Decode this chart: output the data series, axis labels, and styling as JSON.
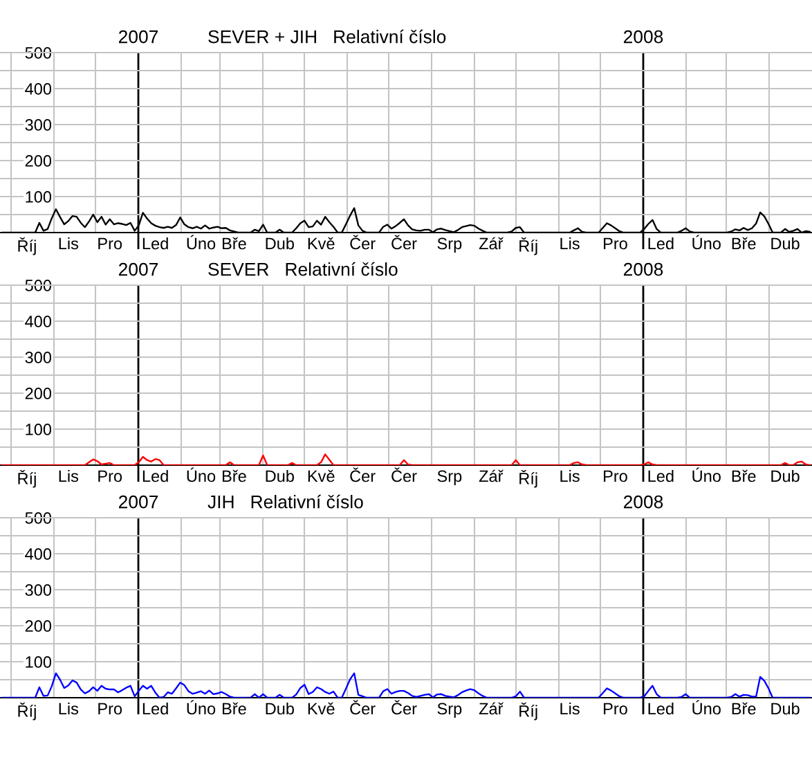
{
  "chart_data": [
    {
      "type": "line",
      "title": "SEVER + JIH   Relativní číslo",
      "categories": [
        null,
        null,
        null,
        null,
        null,
        null,
        "Říj",
        null,
        null,
        null,
        null,
        null,
        null,
        null,
        null,
        null,
        "Lis",
        null,
        null,
        null,
        null,
        null,
        null,
        null,
        null,
        null,
        "Pro",
        null,
        null,
        null,
        null,
        null,
        null,
        null,
        null,
        null,
        null,
        "Led",
        null,
        null,
        null,
        null,
        null,
        null,
        null,
        null,
        null,
        null,
        "Úno",
        null,
        null,
        null,
        null,
        null,
        null,
        null,
        "Bře",
        null,
        null,
        null,
        null,
        null,
        null,
        null,
        null,
        null,
        null,
        "Dub",
        null,
        null,
        null,
        null,
        null,
        null,
        null,
        null,
        null,
        "Kvě",
        null,
        null,
        null,
        null,
        null,
        null,
        null,
        null,
        null,
        "Čer",
        null,
        null,
        null,
        null,
        null,
        null,
        null,
        null,
        null,
        "Čer",
        null,
        null,
        null,
        null,
        null,
        null,
        null,
        null,
        null,
        null,
        "Srp",
        null,
        null,
        null,
        null,
        null,
        null,
        null,
        null,
        null,
        "Zář",
        null,
        null,
        null,
        null,
        null,
        null,
        null,
        null,
        "Říj",
        null,
        null,
        null,
        null,
        null,
        null,
        null,
        null,
        null,
        "Lis",
        null,
        null,
        null,
        null,
        null,
        null,
        null,
        null,
        null,
        null,
        "Pro",
        null,
        null,
        null,
        null,
        null,
        null,
        null,
        null,
        null,
        null,
        "Led",
        null,
        null,
        null,
        null,
        null,
        null,
        null,
        null,
        null,
        null,
        "Úno",
        null,
        null,
        null,
        null,
        null,
        null,
        null,
        null,
        "Bře",
        null,
        null,
        null,
        null,
        null,
        null,
        null,
        null,
        null,
        "Dub",
        null,
        null,
        null,
        null,
        null,
        null
      ],
      "x2lim": [
        "2006-09-23",
        "2008-05-02"
      ],
      "x2ticks": [
        {
          "value": "2006-10-01",
          "label": null
        },
        {
          "value": "2006-11-01",
          "label": null
        },
        {
          "value": "2006-12-01",
          "label": null
        },
        {
          "value": "2007-01-01",
          "label": "2007"
        },
        {
          "value": "2007-02-01",
          "label": null
        },
        {
          "value": "2007-03-01",
          "label": null
        },
        {
          "value": "2007-04-01",
          "label": null
        },
        {
          "value": "2007-05-01",
          "label": null
        },
        {
          "value": "2007-06-01",
          "label": null
        },
        {
          "value": "2007-07-01",
          "label": null
        },
        {
          "value": "2007-08-01",
          "label": null
        },
        {
          "value": "2007-09-01",
          "label": null
        },
        {
          "value": "2007-10-01",
          "label": null
        },
        {
          "value": "2007-11-01",
          "label": null
        },
        {
          "value": "2007-12-01",
          "label": null
        },
        {
          "value": "2008-01-01",
          "label": "2008"
        },
        {
          "value": "2008-02-01",
          "label": null
        },
        {
          "value": "2008-03-01",
          "label": null
        },
        {
          "value": "2008-04-01",
          "label": null
        }
      ],
      "ylim": [
        0,
        500
      ],
      "yticks": [
        {
          "value": 50,
          "label": null
        },
        100,
        {
          "value": 150,
          "label": null
        },
        200,
        {
          "value": 250,
          "label": null
        },
        300,
        {
          "value": 350,
          "label": null
        },
        400,
        {
          "value": 450,
          "label": null
        },
        500
      ],
      "grid": true,
      "series": [
        {
          "color": "#000000",
          "values": [
            0,
            0,
            0,
            0,
            0,
            0,
            0,
            0,
            0,
            27,
            5,
            10,
            40,
            65,
            43,
            23,
            32,
            46,
            44,
            27,
            15,
            31,
            50,
            29,
            44,
            22,
            37,
            23,
            26,
            24,
            21,
            27,
            5,
            20,
            55,
            39,
            26,
            19,
            15,
            13,
            16,
            13,
            21,
            42,
            23,
            15,
            12,
            16,
            11,
            20,
            11,
            14,
            16,
            12,
            13,
            6,
            3,
            0,
            0,
            0,
            0,
            8,
            4,
            22,
            0,
            0,
            0,
            8,
            0,
            0,
            0,
            12,
            26,
            33,
            15,
            17,
            33,
            22,
            44,
            29,
            16,
            0,
            0,
            23,
            47,
            68,
            20,
            5,
            0,
            0,
            0,
            0,
            16,
            22,
            11,
            18,
            27,
            37,
            20,
            9,
            6,
            5,
            8,
            8,
            1,
            9,
            11,
            7,
            4,
            1,
            7,
            15,
            18,
            21,
            19,
            11,
            5,
            0,
            0,
            0,
            0,
            0,
            0,
            3,
            13,
            15,
            0,
            0,
            0,
            0,
            0,
            0,
            0,
            0,
            0,
            0,
            0,
            0,
            6,
            12,
            2,
            0,
            0,
            0,
            0,
            13,
            26,
            20,
            12,
            4,
            0,
            0,
            0,
            0,
            0,
            10,
            24,
            35,
            10,
            0,
            0,
            0,
            0,
            0,
            5,
            12,
            3,
            0,
            0,
            0,
            0,
            0,
            0,
            0,
            0,
            0,
            3,
            9,
            6,
            13,
            7,
            12,
            25,
            56,
            45,
            24,
            0,
            0,
            0,
            10,
            2,
            5,
            10,
            0,
            4,
            2
          ]
        }
      ]
    },
    {
      "type": "line",
      "title": "SEVER   Relativní číslo",
      "categories": [
        null,
        null,
        null,
        null,
        null,
        null,
        "Říj",
        null,
        null,
        null,
        null,
        null,
        null,
        null,
        null,
        null,
        "Lis",
        null,
        null,
        null,
        null,
        null,
        null,
        null,
        null,
        null,
        "Pro",
        null,
        null,
        null,
        null,
        null,
        null,
        null,
        null,
        null,
        null,
        "Led",
        null,
        null,
        null,
        null,
        null,
        null,
        null,
        null,
        null,
        null,
        "Úno",
        null,
        null,
        null,
        null,
        null,
        null,
        null,
        "Bře",
        null,
        null,
        null,
        null,
        null,
        null,
        null,
        null,
        null,
        null,
        "Dub",
        null,
        null,
        null,
        null,
        null,
        null,
        null,
        null,
        null,
        "Kvě",
        null,
        null,
        null,
        null,
        null,
        null,
        null,
        null,
        null,
        "Čer",
        null,
        null,
        null,
        null,
        null,
        null,
        null,
        null,
        null,
        "Čer",
        null,
        null,
        null,
        null,
        null,
        null,
        null,
        null,
        null,
        null,
        "Srp",
        null,
        null,
        null,
        null,
        null,
        null,
        null,
        null,
        null,
        "Zář",
        null,
        null,
        null,
        null,
        null,
        null,
        null,
        null,
        "Říj",
        null,
        null,
        null,
        null,
        null,
        null,
        null,
        null,
        null,
        "Lis",
        null,
        null,
        null,
        null,
        null,
        null,
        null,
        null,
        null,
        null,
        "Pro",
        null,
        null,
        null,
        null,
        null,
        null,
        null,
        null,
        null,
        null,
        "Led",
        null,
        null,
        null,
        null,
        null,
        null,
        null,
        null,
        null,
        null,
        "Úno",
        null,
        null,
        null,
        null,
        null,
        null,
        null,
        null,
        "Bře",
        null,
        null,
        null,
        null,
        null,
        null,
        null,
        null,
        null,
        "Dub",
        null,
        null,
        null,
        null,
        null,
        null
      ],
      "x2lim": [
        "2006-09-23",
        "2008-05-02"
      ],
      "x2ticks": [
        {
          "value": "2006-10-01",
          "label": null
        },
        {
          "value": "2006-11-01",
          "label": null
        },
        {
          "value": "2006-12-01",
          "label": null
        },
        {
          "value": "2007-01-01",
          "label": "2007"
        },
        {
          "value": "2007-02-01",
          "label": null
        },
        {
          "value": "2007-03-01",
          "label": null
        },
        {
          "value": "2007-04-01",
          "label": null
        },
        {
          "value": "2007-05-01",
          "label": null
        },
        {
          "value": "2007-06-01",
          "label": null
        },
        {
          "value": "2007-07-01",
          "label": null
        },
        {
          "value": "2007-08-01",
          "label": null
        },
        {
          "value": "2007-09-01",
          "label": null
        },
        {
          "value": "2007-10-01",
          "label": null
        },
        {
          "value": "2007-11-01",
          "label": null
        },
        {
          "value": "2007-12-01",
          "label": null
        },
        {
          "value": "2008-01-01",
          "label": "2008"
        },
        {
          "value": "2008-02-01",
          "label": null
        },
        {
          "value": "2008-03-01",
          "label": null
        },
        {
          "value": "2008-04-01",
          "label": null
        }
      ],
      "ylim": [
        0,
        500
      ],
      "yticks": [
        {
          "value": 50,
          "label": null
        },
        100,
        {
          "value": 150,
          "label": null
        },
        200,
        {
          "value": 250,
          "label": null
        },
        300,
        {
          "value": 350,
          "label": null
        },
        400,
        {
          "value": 450,
          "label": null
        },
        500
      ],
      "grid": true,
      "series": [
        {
          "color": "#ff0000",
          "values": [
            0,
            0,
            0,
            0,
            0,
            0,
            0,
            0,
            0,
            0,
            0,
            0,
            0,
            0,
            0,
            0,
            0,
            0,
            0,
            0,
            0,
            8,
            16,
            11,
            2,
            4,
            6,
            0,
            0,
            0,
            0,
            0,
            0,
            8,
            23,
            14,
            10,
            17,
            14,
            0,
            0,
            0,
            0,
            0,
            0,
            0,
            0,
            0,
            0,
            0,
            0,
            0,
            0,
            0,
            0,
            8,
            0,
            0,
            0,
            0,
            0,
            0,
            0,
            27,
            0,
            0,
            0,
            0,
            0,
            0,
            6,
            0,
            0,
            0,
            0,
            0,
            0,
            8,
            30,
            15,
            0,
            0,
            0,
            0,
            0,
            0,
            0,
            0,
            0,
            0,
            0,
            0,
            0,
            0,
            0,
            0,
            0,
            14,
            2,
            0,
            0,
            0,
            0,
            0,
            0,
            0,
            0,
            0,
            0,
            0,
            0,
            0,
            0,
            0,
            0,
            0,
            0,
            0,
            0,
            0,
            0,
            0,
            0,
            0,
            14,
            0,
            0,
            0,
            0,
            0,
            0,
            0,
            0,
            0,
            0,
            0,
            0,
            0,
            6,
            8,
            2,
            0,
            0,
            0,
            0,
            0,
            0,
            0,
            0,
            0,
            0,
            0,
            0,
            0,
            0,
            2,
            8,
            2,
            0,
            0,
            0,
            0,
            0,
            0,
            0,
            0,
            0,
            0,
            0,
            0,
            0,
            0,
            0,
            0,
            0,
            0,
            0,
            0,
            0,
            0,
            0,
            0,
            0,
            0,
            0,
            0,
            0,
            0,
            0,
            6,
            0,
            0,
            8,
            10,
            2,
            0
          ]
        }
      ]
    },
    {
      "type": "line",
      "title": "JIH   Relativní číslo",
      "categories": [
        null,
        null,
        null,
        null,
        null,
        null,
        "Říj",
        null,
        null,
        null,
        null,
        null,
        null,
        null,
        null,
        null,
        "Lis",
        null,
        null,
        null,
        null,
        null,
        null,
        null,
        null,
        null,
        "Pro",
        null,
        null,
        null,
        null,
        null,
        null,
        null,
        null,
        null,
        null,
        "Led",
        null,
        null,
        null,
        null,
        null,
        null,
        null,
        null,
        null,
        null,
        "Úno",
        null,
        null,
        null,
        null,
        null,
        null,
        null,
        "Bře",
        null,
        null,
        null,
        null,
        null,
        null,
        null,
        null,
        null,
        null,
        "Dub",
        null,
        null,
        null,
        null,
        null,
        null,
        null,
        null,
        null,
        "Kvě",
        null,
        null,
        null,
        null,
        null,
        null,
        null,
        null,
        null,
        "Čer",
        null,
        null,
        null,
        null,
        null,
        null,
        null,
        null,
        null,
        "Čer",
        null,
        null,
        null,
        null,
        null,
        null,
        null,
        null,
        null,
        null,
        "Srp",
        null,
        null,
        null,
        null,
        null,
        null,
        null,
        null,
        null,
        "Zář",
        null,
        null,
        null,
        null,
        null,
        null,
        null,
        null,
        "Říj",
        null,
        null,
        null,
        null,
        null,
        null,
        null,
        null,
        null,
        "Lis",
        null,
        null,
        null,
        null,
        null,
        null,
        null,
        null,
        null,
        null,
        "Pro",
        null,
        null,
        null,
        null,
        null,
        null,
        null,
        null,
        null,
        null,
        "Led",
        null,
        null,
        null,
        null,
        null,
        null,
        null,
        null,
        null,
        null,
        "Úno",
        null,
        null,
        null,
        null,
        null,
        null,
        null,
        null,
        "Bře",
        null,
        null,
        null,
        null,
        null,
        null,
        null,
        null,
        null,
        "Dub",
        null,
        null,
        null,
        null,
        null,
        null
      ],
      "x2lim": [
        "2006-09-23",
        "2008-05-02"
      ],
      "x2ticks": [
        {
          "value": "2006-10-01",
          "label": null
        },
        {
          "value": "2006-11-01",
          "label": null
        },
        {
          "value": "2006-12-01",
          "label": null
        },
        {
          "value": "2007-01-01",
          "label": "2007"
        },
        {
          "value": "2007-02-01",
          "label": null
        },
        {
          "value": "2007-03-01",
          "label": null
        },
        {
          "value": "2007-04-01",
          "label": null
        },
        {
          "value": "2007-05-01",
          "label": null
        },
        {
          "value": "2007-06-01",
          "label": null
        },
        {
          "value": "2007-07-01",
          "label": null
        },
        {
          "value": "2007-08-01",
          "label": null
        },
        {
          "value": "2007-09-01",
          "label": null
        },
        {
          "value": "2007-10-01",
          "label": null
        },
        {
          "value": "2007-11-01",
          "label": null
        },
        {
          "value": "2007-12-01",
          "label": null
        },
        {
          "value": "2008-01-01",
          "label": "2008"
        },
        {
          "value": "2008-02-01",
          "label": null
        },
        {
          "value": "2008-03-01",
          "label": null
        },
        {
          "value": "2008-04-01",
          "label": null
        }
      ],
      "ylim": [
        0,
        500
      ],
      "yticks": [
        {
          "value": 50,
          "label": null
        },
        100,
        {
          "value": 150,
          "label": null
        },
        200,
        {
          "value": 250,
          "label": null
        },
        300,
        {
          "value": 350,
          "label": null
        },
        400,
        {
          "value": 450,
          "label": null
        },
        500
      ],
      "grid": true,
      "series": [
        {
          "color": "#0000ff",
          "values": [
            0,
            0,
            0,
            0,
            0,
            0,
            0,
            0,
            0,
            29,
            5,
            6,
            32,
            68,
            50,
            27,
            34,
            48,
            42,
            23,
            12,
            18,
            29,
            19,
            33,
            25,
            23,
            23,
            15,
            21,
            28,
            33,
            4,
            19,
            33,
            25,
            33,
            14,
            0,
            2,
            15,
            11,
            26,
            42,
            35,
            18,
            11,
            14,
            18,
            11,
            20,
            10,
            12,
            16,
            10,
            3,
            0,
            0,
            0,
            0,
            0,
            10,
            0,
            10,
            0,
            0,
            0,
            8,
            0,
            0,
            0,
            9,
            27,
            36,
            10,
            16,
            29,
            24,
            16,
            11,
            17,
            0,
            0,
            25,
            51,
            68,
            8,
            4,
            0,
            0,
            0,
            0,
            18,
            24,
            11,
            16,
            19,
            19,
            13,
            5,
            2,
            5,
            8,
            10,
            1,
            9,
            10,
            5,
            3,
            1,
            7,
            15,
            20,
            24,
            21,
            12,
            5,
            0,
            0,
            0,
            0,
            0,
            0,
            0,
            4,
            17,
            0,
            0,
            0,
            0,
            0,
            0,
            0,
            0,
            0,
            0,
            0,
            0,
            0,
            0,
            0,
            0,
            0,
            0,
            0,
            13,
            26,
            20,
            12,
            4,
            0,
            0,
            0,
            0,
            0,
            4,
            19,
            33,
            10,
            0,
            0,
            0,
            0,
            0,
            2,
            10,
            0,
            0,
            0,
            0,
            0,
            0,
            0,
            0,
            0,
            0,
            2,
            10,
            3,
            8,
            7,
            3,
            3,
            58,
            47,
            26,
            0,
            0,
            0,
            0,
            0,
            0,
            0,
            0,
            0,
            0
          ]
        }
      ]
    }
  ]
}
